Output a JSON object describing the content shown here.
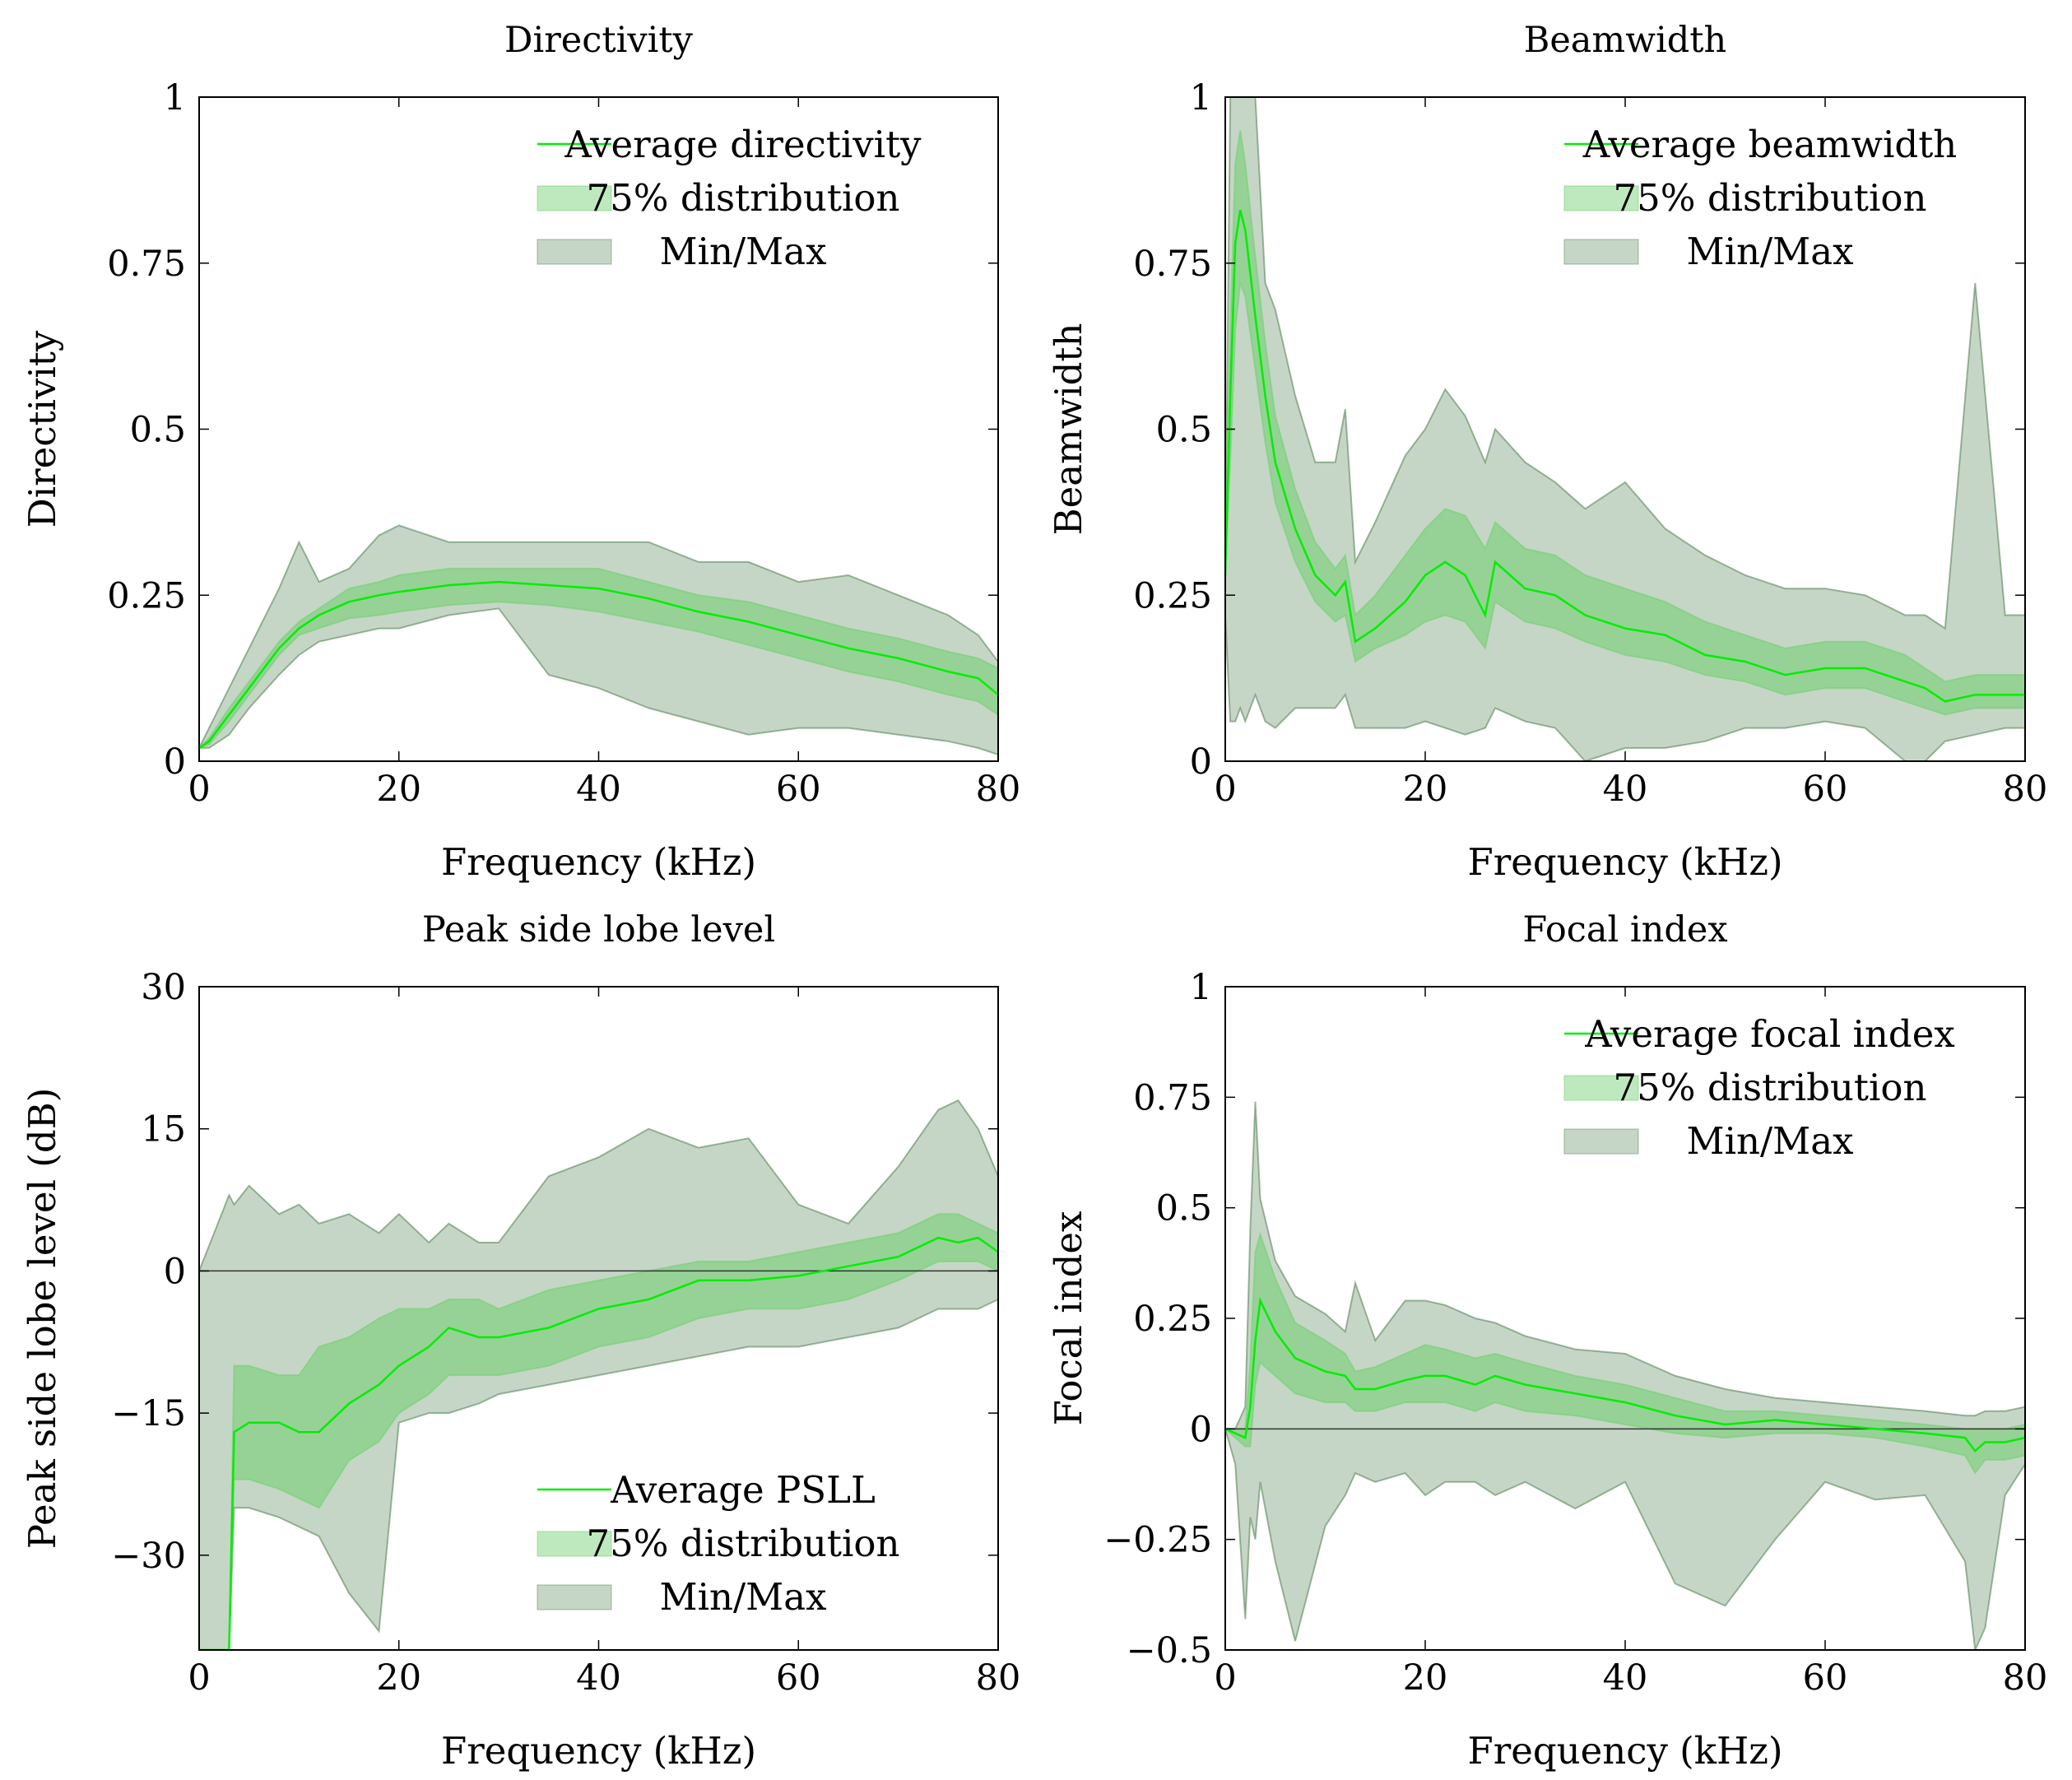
{
  "colors": {
    "average_line": "#00ee00",
    "distribution_fill": "#6fcf6f",
    "minmax_fill": "#4f7f4f",
    "axis": "#000000"
  },
  "chart_data": [
    {
      "id": "directivity",
      "type": "area",
      "title": "Directivity",
      "xlabel": "Frequency (kHz)",
      "ylabel": "Directivity",
      "xlim": [
        0,
        80
      ],
      "ylim": [
        0,
        1
      ],
      "xticks": [
        0,
        20,
        40,
        60,
        80
      ],
      "yticks": [
        0,
        0.25,
        0.5,
        0.75,
        1
      ],
      "ytick_labels": [
        "0",
        "0.25",
        "0.5",
        "0.75",
        "1"
      ],
      "zero_line": false,
      "legend": {
        "position": "top-right",
        "entries": [
          "Average directivity",
          "75% distribution",
          "Min/Max"
        ]
      },
      "x": [
        0,
        1,
        3,
        5,
        8,
        10,
        12,
        15,
        18,
        20,
        25,
        30,
        35,
        40,
        45,
        50,
        55,
        60,
        65,
        70,
        75,
        78,
        80
      ],
      "series": [
        {
          "name": "Average directivity",
          "values": [
            0.02,
            0.03,
            0.07,
            0.11,
            0.17,
            0.2,
            0.22,
            0.24,
            0.25,
            0.255,
            0.265,
            0.27,
            0.265,
            0.26,
            0.245,
            0.225,
            0.21,
            0.19,
            0.17,
            0.155,
            0.135,
            0.125,
            0.1
          ]
        },
        {
          "name": "75% distribution upper",
          "values": [
            0.02,
            0.035,
            0.08,
            0.12,
            0.18,
            0.21,
            0.23,
            0.26,
            0.27,
            0.28,
            0.29,
            0.29,
            0.29,
            0.29,
            0.27,
            0.25,
            0.24,
            0.22,
            0.2,
            0.185,
            0.165,
            0.155,
            0.14
          ]
        },
        {
          "name": "75% distribution lower",
          "values": [
            0.02,
            0.025,
            0.06,
            0.1,
            0.16,
            0.19,
            0.2,
            0.215,
            0.22,
            0.225,
            0.235,
            0.24,
            0.235,
            0.225,
            0.21,
            0.195,
            0.175,
            0.155,
            0.135,
            0.12,
            0.1,
            0.09,
            0.07
          ]
        },
        {
          "name": "Min/Max upper",
          "values": [
            0.02,
            0.05,
            0.11,
            0.17,
            0.26,
            0.33,
            0.27,
            0.29,
            0.34,
            0.355,
            0.33,
            0.33,
            0.33,
            0.33,
            0.33,
            0.3,
            0.3,
            0.27,
            0.28,
            0.25,
            0.22,
            0.19,
            0.15
          ]
        },
        {
          "name": "Min/Max lower",
          "values": [
            0.02,
            0.02,
            0.04,
            0.08,
            0.13,
            0.16,
            0.18,
            0.19,
            0.2,
            0.2,
            0.22,
            0.23,
            0.13,
            0.11,
            0.08,
            0.06,
            0.04,
            0.05,
            0.05,
            0.04,
            0.03,
            0.02,
            0.01
          ]
        }
      ]
    },
    {
      "id": "beamwidth",
      "type": "area",
      "title": "Beamwidth",
      "xlabel": "Frequency (kHz)",
      "ylabel": "Beamwidth",
      "xlim": [
        0,
        80
      ],
      "ylim": [
        0,
        1
      ],
      "xticks": [
        0,
        20,
        40,
        60,
        80
      ],
      "yticks": [
        0,
        0.25,
        0.5,
        0.75,
        1
      ],
      "ytick_labels": [
        "0",
        "0.25",
        "0.5",
        "0.75",
        "1"
      ],
      "zero_line": false,
      "legend": {
        "position": "top-right",
        "entries": [
          "Average beamwidth",
          "75% distribution",
          "Min/Max"
        ]
      },
      "x": [
        0,
        0.5,
        1,
        1.5,
        2,
        3,
        4,
        5,
        7,
        9,
        11,
        12,
        13,
        15,
        18,
        20,
        22,
        24,
        26,
        27,
        30,
        33,
        36,
        40,
        44,
        48,
        52,
        56,
        60,
        64,
        68,
        70,
        72,
        75,
        78,
        80
      ],
      "series": [
        {
          "name": "Average beamwidth",
          "values": [
            0.28,
            0.55,
            0.78,
            0.83,
            0.8,
            0.67,
            0.55,
            0.45,
            0.35,
            0.28,
            0.25,
            0.27,
            0.18,
            0.2,
            0.24,
            0.28,
            0.3,
            0.28,
            0.22,
            0.3,
            0.26,
            0.25,
            0.22,
            0.2,
            0.19,
            0.16,
            0.15,
            0.13,
            0.14,
            0.14,
            0.12,
            0.11,
            0.09,
            0.1,
            0.1,
            0.1
          ]
        },
        {
          "name": "75% distribution upper",
          "values": [
            0.3,
            0.65,
            0.9,
            0.95,
            0.9,
            0.76,
            0.63,
            0.52,
            0.41,
            0.33,
            0.29,
            0.31,
            0.22,
            0.25,
            0.31,
            0.35,
            0.38,
            0.37,
            0.32,
            0.36,
            0.32,
            0.31,
            0.28,
            0.26,
            0.24,
            0.21,
            0.19,
            0.17,
            0.18,
            0.18,
            0.16,
            0.14,
            0.12,
            0.13,
            0.13,
            0.13
          ]
        },
        {
          "name": "75% distribution lower",
          "values": [
            0.28,
            0.45,
            0.65,
            0.72,
            0.7,
            0.59,
            0.48,
            0.39,
            0.3,
            0.24,
            0.21,
            0.22,
            0.15,
            0.17,
            0.19,
            0.21,
            0.22,
            0.21,
            0.17,
            0.24,
            0.21,
            0.2,
            0.18,
            0.16,
            0.15,
            0.13,
            0.12,
            0.1,
            0.11,
            0.11,
            0.09,
            0.08,
            0.07,
            0.08,
            0.08,
            0.08
          ]
        },
        {
          "name": "Min/Max upper",
          "values": [
            0.3,
            1.0,
            1.0,
            1.0,
            1.0,
            1.0,
            0.72,
            0.68,
            0.55,
            0.45,
            0.45,
            0.53,
            0.3,
            0.36,
            0.46,
            0.5,
            0.56,
            0.52,
            0.45,
            0.5,
            0.45,
            0.42,
            0.38,
            0.42,
            0.35,
            0.31,
            0.28,
            0.26,
            0.26,
            0.25,
            0.22,
            0.22,
            0.2,
            0.72,
            0.22,
            0.22
          ]
        },
        {
          "name": "Min/Max lower",
          "values": [
            0.22,
            0.06,
            0.06,
            0.08,
            0.06,
            0.1,
            0.06,
            0.05,
            0.08,
            0.08,
            0.08,
            0.1,
            0.05,
            0.05,
            0.05,
            0.06,
            0.05,
            0.04,
            0.05,
            0.08,
            0.06,
            0.05,
            0.0,
            0.02,
            0.02,
            0.03,
            0.05,
            0.05,
            0.06,
            0.05,
            0.0,
            0.0,
            0.03,
            0.04,
            0.05,
            0.05
          ]
        }
      ]
    },
    {
      "id": "psll",
      "type": "area",
      "title": "Peak side lobe level",
      "xlabel": "Frequency (kHz)",
      "ylabel": "Peak side lobe level (dB)",
      "xlim": [
        0,
        80
      ],
      "ylim": [
        -40,
        30
      ],
      "xticks": [
        0,
        20,
        40,
        60,
        80
      ],
      "yticks": [
        -30,
        -15,
        0,
        15,
        30
      ],
      "ytick_labels": [
        "−30",
        "−15",
        "0",
        "15",
        "30"
      ],
      "zero_line": true,
      "legend": {
        "position": "bottom-right",
        "entries": [
          "Average PSLL",
          "75% distribution",
          "Min/Max"
        ]
      },
      "x": [
        0,
        3,
        3.5,
        5,
        8,
        10,
        12,
        15,
        18,
        20,
        23,
        25,
        28,
        30,
        35,
        40,
        45,
        50,
        55,
        60,
        65,
        70,
        74,
        76,
        78,
        80
      ],
      "series": [
        {
          "name": "Average PSLL",
          "values": [
            -40,
            -40,
            -17,
            -16,
            -16,
            -17,
            -17,
            -14,
            -12,
            -10,
            -8,
            -6,
            -7,
            -7,
            -6,
            -4,
            -3,
            -1,
            -1,
            -0.5,
            0.5,
            1.5,
            3.5,
            3,
            3.5,
            2
          ]
        },
        {
          "name": "75% distribution upper",
          "values": [
            -40,
            -40,
            -10,
            -10,
            -11,
            -11,
            -8,
            -7,
            -5,
            -4,
            -4,
            -3,
            -3,
            -4,
            -2,
            -1,
            0,
            1,
            1,
            2,
            3,
            4,
            6,
            6,
            5,
            4
          ]
        },
        {
          "name": "75% distribution lower",
          "values": [
            -40,
            -40,
            -22,
            -22,
            -23,
            -24,
            -25,
            -20,
            -18,
            -15,
            -13,
            -11,
            -11,
            -11,
            -10,
            -8,
            -7,
            -5,
            -4,
            -4,
            -3,
            -1,
            1,
            1,
            1,
            0
          ]
        },
        {
          "name": "Min/Max upper",
          "values": [
            0,
            8,
            7,
            9,
            6,
            7,
            5,
            6,
            4,
            6,
            3,
            5,
            3,
            3,
            10,
            12,
            15,
            13,
            14,
            7,
            5,
            11,
            17,
            18,
            15,
            10
          ]
        },
        {
          "name": "Min/Max lower",
          "values": [
            -40,
            -40,
            -25,
            -25,
            -26,
            -27,
            -28,
            -34,
            -38,
            -16,
            -15,
            -15,
            -14,
            -13,
            -12,
            -11,
            -10,
            -9,
            -8,
            -8,
            -7,
            -6,
            -4,
            -4,
            -4,
            -3
          ]
        }
      ]
    },
    {
      "id": "focal_index",
      "type": "area",
      "title": "Focal index",
      "xlabel": "Frequency (kHz)",
      "ylabel": "Focal index",
      "xlim": [
        0,
        80
      ],
      "ylim": [
        -0.5,
        1
      ],
      "xticks": [
        0,
        20,
        40,
        60,
        80
      ],
      "yticks": [
        -0.5,
        -0.25,
        0,
        0.25,
        0.5,
        0.75,
        1
      ],
      "ytick_labels": [
        "−0.5",
        "−0.25",
        "0",
        "0.25",
        "0.5",
        "0.75",
        "1"
      ],
      "zero_line": true,
      "legend": {
        "position": "top-right",
        "entries": [
          "Average focal index",
          "75% distribution",
          "Min/Max"
        ]
      },
      "x": [
        0,
        1,
        2,
        2.5,
        3,
        3.5,
        5,
        7,
        10,
        12,
        13,
        15,
        18,
        20,
        22,
        25,
        27,
        30,
        35,
        40,
        45,
        50,
        55,
        60,
        65,
        70,
        74,
        75,
        76,
        78,
        80
      ],
      "series": [
        {
          "name": "Average focal index",
          "values": [
            0,
            -0.01,
            -0.02,
            0.05,
            0.2,
            0.29,
            0.22,
            0.16,
            0.13,
            0.12,
            0.09,
            0.09,
            0.11,
            0.12,
            0.12,
            0.1,
            0.12,
            0.1,
            0.08,
            0.06,
            0.03,
            0.01,
            0.02,
            0.01,
            0.0,
            -0.01,
            -0.02,
            -0.05,
            -0.03,
            -0.03,
            -0.02
          ]
        },
        {
          "name": "75% distribution upper",
          "values": [
            0,
            0,
            0.0,
            0.15,
            0.4,
            0.44,
            0.34,
            0.24,
            0.2,
            0.17,
            0.13,
            0.14,
            0.17,
            0.19,
            0.18,
            0.16,
            0.17,
            0.15,
            0.12,
            0.1,
            0.07,
            0.04,
            0.04,
            0.03,
            0.02,
            0.01,
            0.0,
            0.0,
            0.0,
            0.0,
            0.01
          ]
        },
        {
          "name": "75% distribution lower",
          "values": [
            0,
            -0.02,
            -0.04,
            -0.04,
            0.1,
            0.15,
            0.12,
            0.08,
            0.06,
            0.06,
            0.04,
            0.04,
            0.06,
            0.06,
            0.06,
            0.04,
            0.06,
            0.04,
            0.03,
            0.01,
            -0.01,
            -0.02,
            -0.01,
            -0.01,
            -0.02,
            -0.04,
            -0.06,
            -0.1,
            -0.07,
            -0.07,
            -0.06
          ]
        },
        {
          "name": "Min/Max upper",
          "values": [
            0,
            0,
            0.05,
            0.45,
            0.74,
            0.52,
            0.38,
            0.3,
            0.26,
            0.22,
            0.33,
            0.2,
            0.29,
            0.29,
            0.28,
            0.25,
            0.24,
            0.21,
            0.18,
            0.17,
            0.12,
            0.09,
            0.07,
            0.06,
            0.05,
            0.04,
            0.03,
            0.03,
            0.04,
            0.04,
            0.05
          ]
        },
        {
          "name": "Min/Max lower",
          "values": [
            0,
            -0.08,
            -0.43,
            -0.2,
            -0.25,
            -0.12,
            -0.3,
            -0.48,
            -0.22,
            -0.15,
            -0.1,
            -0.12,
            -0.1,
            -0.15,
            -0.12,
            -0.12,
            -0.15,
            -0.12,
            -0.18,
            -0.12,
            -0.35,
            -0.4,
            -0.25,
            -0.12,
            -0.16,
            -0.15,
            -0.3,
            -0.5,
            -0.45,
            -0.15,
            -0.08
          ]
        }
      ]
    }
  ]
}
